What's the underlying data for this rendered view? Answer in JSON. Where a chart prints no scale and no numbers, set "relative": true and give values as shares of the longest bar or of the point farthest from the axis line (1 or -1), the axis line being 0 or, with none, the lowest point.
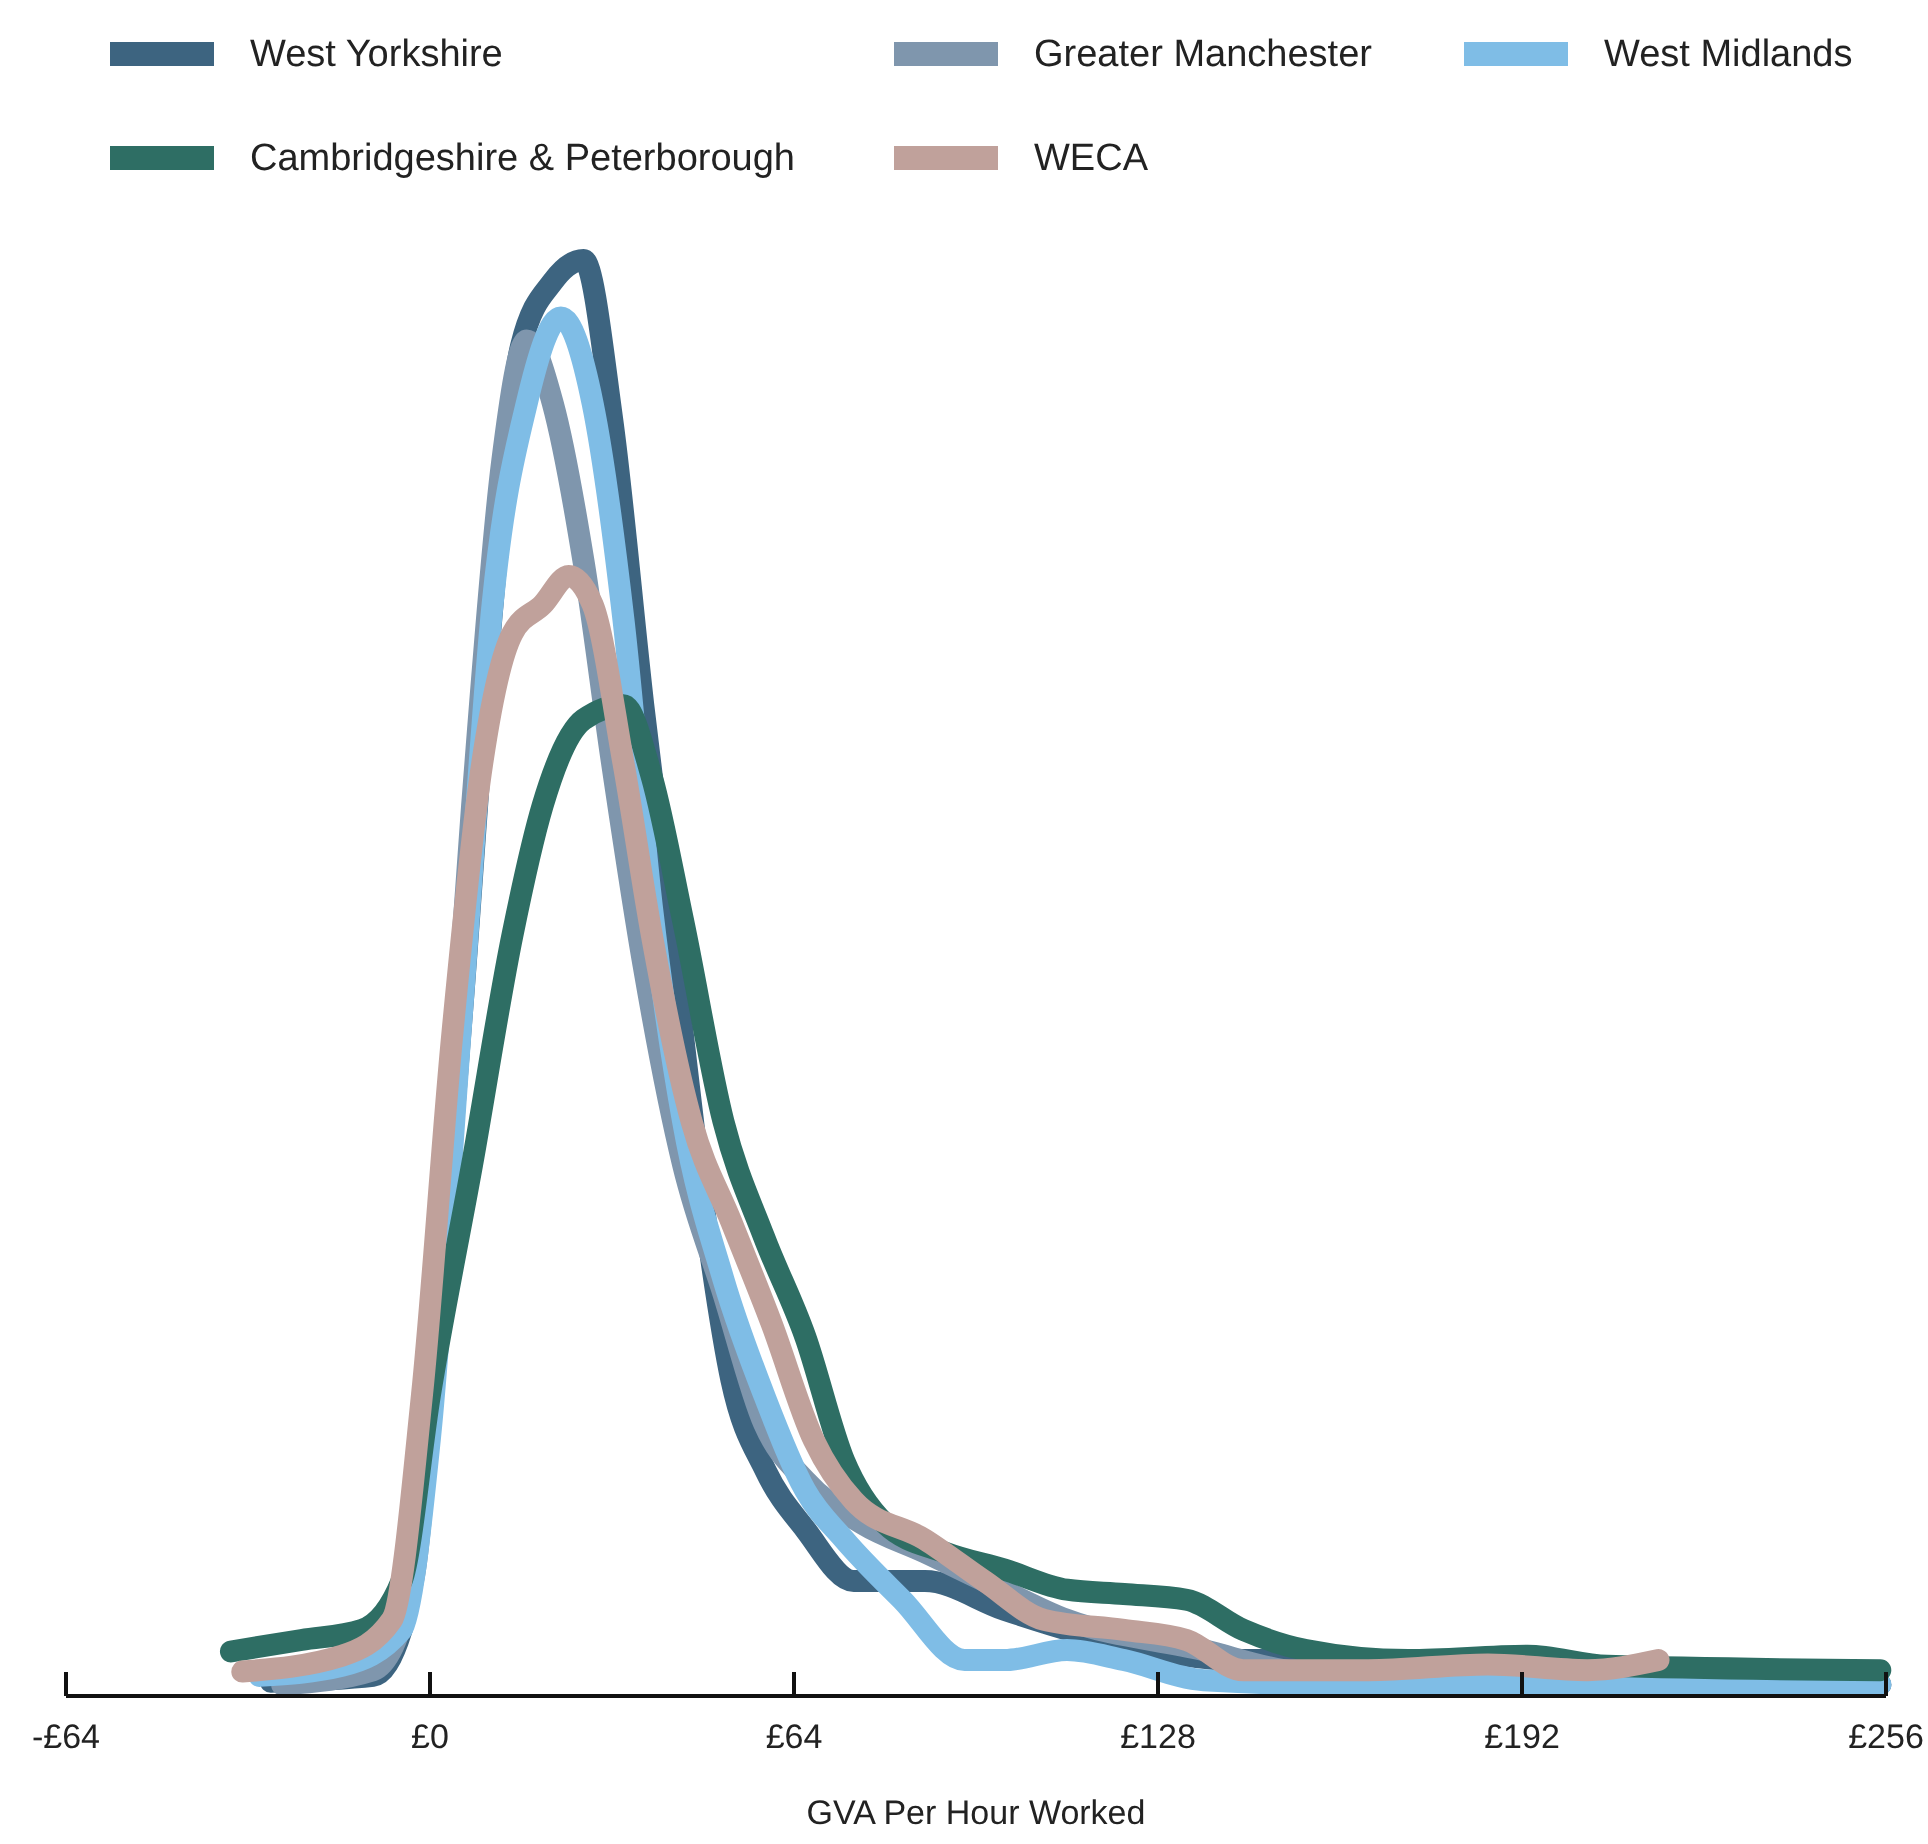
{
  "chart_data": {
    "type": "line",
    "relative": true,
    "xlabel": "GVA Per Hour Worked",
    "xlim": [
      -64,
      256
    ],
    "xticks": [
      {
        "value": -64,
        "label": "-£64"
      },
      {
        "value": 0,
        "label": "£0"
      },
      {
        "value": 64,
        "label": "£64"
      },
      {
        "value": 128,
        "label": "£128"
      },
      {
        "value": 192,
        "label": "£192"
      },
      {
        "value": 256,
        "label": "£256"
      }
    ],
    "legend": "top",
    "grid": false,
    "line_style": "solid",
    "series": [
      {
        "name": "West Yorkshire",
        "color": "#3d6480",
        "x": [
          -28,
          -10,
          -5,
          0,
          5.7,
          11,
          16,
          21.6,
          27,
          32,
          37.5,
          43,
          48,
          53,
          59,
          66,
          74.5,
          87,
          101,
          122,
          143,
          172,
          193,
          225,
          255
        ],
        "values": [
          0.01,
          0.014,
          0.046,
          0.21,
          0.48,
          0.76,
          0.94,
          0.985,
          1,
          0.89,
          0.69,
          0.51,
          0.345,
          0.22,
          0.157,
          0.116,
          0.08,
          0.08,
          0.06,
          0.036,
          0.025,
          0.025,
          0.018,
          0.011,
          0.008
        ]
      },
      {
        "name": "Greater Manchester",
        "color": "#7f96ad",
        "x": [
          -26,
          -10,
          -3,
          2,
          7.4,
          12.7,
          17,
          21.6,
          27,
          32,
          37.5,
          44.5,
          51.6,
          58.7,
          66,
          76,
          87,
          97.5,
          112,
          136,
          150,
          172,
          207,
          255
        ],
        "values": [
          0.008,
          0.018,
          0.08,
          0.32,
          0.62,
          0.86,
          0.944,
          0.9,
          0.79,
          0.65,
          0.51,
          0.37,
          0.28,
          0.19,
          0.15,
          0.12,
          0.1,
          0.08,
          0.053,
          0.032,
          0.018,
          0.011,
          0.008,
          0.008
        ]
      },
      {
        "name": "West Midlands",
        "color": "#7fbde6",
        "x": [
          -30,
          -15.5,
          -5,
          0,
          5.7,
          11,
          17,
          23,
          28.6,
          34,
          39,
          44.5,
          51.6,
          58.7,
          66,
          72.8,
          83,
          94,
          101,
          112,
          122,
          136,
          172,
          207,
          255
        ],
        "values": [
          0.014,
          0.021,
          0.046,
          0.18,
          0.48,
          0.76,
          0.9,
          0.96,
          0.9,
          0.75,
          0.55,
          0.4,
          0.29,
          0.21,
          0.143,
          0.109,
          0.067,
          0.025,
          0.025,
          0.032,
          0.025,
          0.011,
          0.007,
          0.008,
          0.008
        ]
      },
      {
        "name": "Cambridgeshire & Peterborough",
        "color": "#2e6e64",
        "x": [
          -35,
          -22.6,
          -12,
          -5,
          0,
          7.4,
          14.5,
          19.8,
          27,
          34,
          39,
          44.5,
          51.6,
          58.7,
          66,
          72.8,
          80,
          90.5,
          101,
          112,
          122,
          133,
          143,
          154,
          172,
          193,
          207,
          255
        ],
        "values": [
          0.031,
          0.039,
          0.046,
          0.08,
          0.21,
          0.37,
          0.53,
          0.62,
          0.68,
          0.69,
          0.64,
          0.54,
          0.4,
          0.32,
          0.25,
          0.164,
          0.12,
          0.1,
          0.088,
          0.074,
          0.071,
          0.067,
          0.046,
          0.032,
          0.025,
          0.028,
          0.021,
          0.018
        ]
      },
      {
        "name": "WECA",
        "color": "#c0a19b",
        "x": [
          -33,
          -15.5,
          -6.7,
          -1.4,
          3.9,
          9.2,
          14.5,
          19.8,
          24.4,
          28.6,
          34,
          39,
          46,
          53,
          60,
          67.5,
          74.5,
          87,
          97.5,
          108,
          122,
          133,
          143,
          165,
          186,
          203.5,
          216
        ],
        "values": [
          0.017,
          0.028,
          0.053,
          0.21,
          0.46,
          0.65,
          0.74,
          0.76,
          0.78,
          0.76,
          0.65,
          0.53,
          0.4,
          0.33,
          0.26,
          0.178,
          0.136,
          0.109,
          0.08,
          0.053,
          0.046,
          0.039,
          0.018,
          0.018,
          0.022,
          0.018,
          0.025
        ]
      }
    ]
  }
}
